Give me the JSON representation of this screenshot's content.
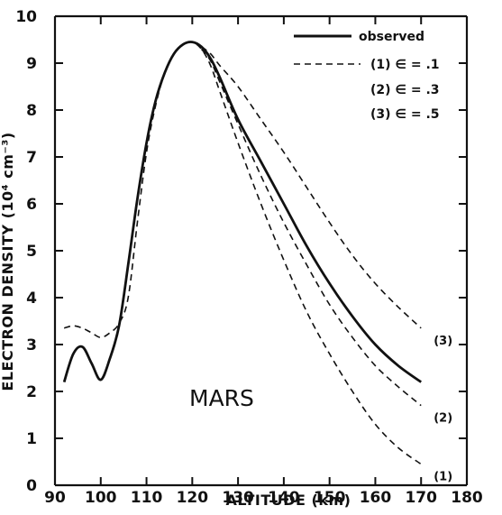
{
  "chart_data": {
    "type": "line",
    "xlabel": "ALTITUDE (km)",
    "ylabel": "ELECTRON DENSITY (10⁴ cm⁻³)",
    "xlim": [
      90,
      180
    ],
    "ylim": [
      0,
      10
    ],
    "xticks": [
      "90",
      "100",
      "110",
      "120",
      "130",
      "140",
      "150",
      "160",
      "170",
      "180"
    ],
    "yticks": [
      "0",
      "1",
      "2",
      "3",
      "4",
      "5",
      "6",
      "7",
      "8",
      "9",
      "10"
    ],
    "annotation": "MARS",
    "grid": false,
    "legend_position": "top-right",
    "series": [
      {
        "name": "observed",
        "style": "solid",
        "x": [
          92,
          94,
          96,
          98,
          100,
          102,
          104,
          106,
          108,
          110,
          112,
          114,
          116,
          118,
          120,
          122,
          124,
          126,
          130,
          135,
          140,
          145,
          150,
          155,
          160,
          165,
          170
        ],
        "y": [
          2.2,
          2.8,
          2.95,
          2.6,
          2.25,
          2.7,
          3.4,
          4.7,
          6.1,
          7.3,
          8.2,
          8.8,
          9.2,
          9.4,
          9.45,
          9.35,
          9.1,
          8.7,
          7.8,
          6.9,
          6.0,
          5.1,
          4.3,
          3.6,
          3.0,
          2.55,
          2.2
        ]
      },
      {
        "name": "(1) ∈ = .1",
        "style": "dashed",
        "x": [
          92,
          94,
          96,
          98,
          100,
          102,
          104,
          106,
          108,
          110,
          112,
          114,
          116,
          118,
          120,
          122,
          124,
          126,
          130,
          135,
          140,
          145,
          150,
          155,
          160,
          165,
          170
        ],
        "y": [
          3.35,
          3.4,
          3.35,
          3.25,
          3.15,
          3.25,
          3.45,
          4.0,
          5.6,
          7.1,
          8.1,
          8.8,
          9.2,
          9.4,
          9.45,
          9.3,
          8.95,
          8.4,
          7.3,
          6.0,
          4.8,
          3.7,
          2.8,
          2.0,
          1.3,
          0.8,
          0.45
        ]
      },
      {
        "name": "(2) ∈ = .3",
        "style": "dashed",
        "x": [
          122,
          124,
          126,
          130,
          135,
          140,
          145,
          150,
          155,
          160,
          165,
          170
        ],
        "y": [
          9.3,
          9.05,
          8.6,
          7.7,
          6.6,
          5.6,
          4.7,
          3.85,
          3.15,
          2.55,
          2.1,
          1.7
        ]
      },
      {
        "name": "(3) ∈ = .5",
        "style": "dashed",
        "x": [
          122,
          124,
          126,
          130,
          135,
          140,
          145,
          150,
          155,
          160,
          165,
          170
        ],
        "y": [
          9.35,
          9.2,
          8.95,
          8.5,
          7.8,
          7.1,
          6.35,
          5.6,
          4.9,
          4.3,
          3.8,
          3.35
        ]
      }
    ],
    "curve_labels": [
      {
        "text": "(1)",
        "x": 170,
        "y": 0.45
      },
      {
        "text": "(2)",
        "x": 170,
        "y": 1.7
      },
      {
        "text": "(3)",
        "x": 170,
        "y": 3.35
      }
    ],
    "legend": [
      {
        "text": "observed",
        "style": "solid"
      },
      {
        "text": "(1) ∈ = .1",
        "style": "dashed"
      },
      {
        "text": "(2) ∈ = .3",
        "style": "none"
      },
      {
        "text": "(3) ∈ = .5",
        "style": "none"
      }
    ]
  }
}
